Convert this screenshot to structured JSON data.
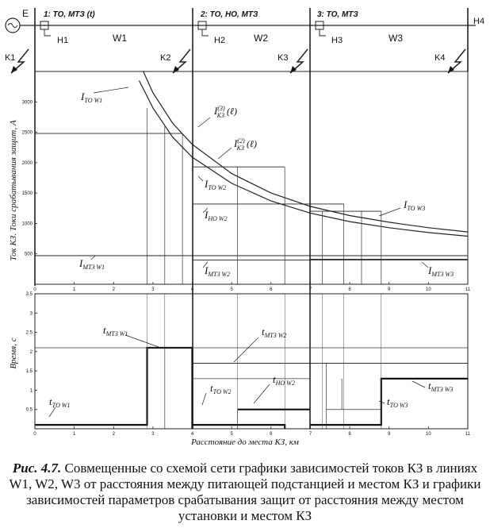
{
  "schema": {
    "source_label": "E",
    "nodes": [
      {
        "id": "H1",
        "label": "H1"
      },
      {
        "id": "H2",
        "label": "H2"
      },
      {
        "id": "H3",
        "label": "H3"
      },
      {
        "id": "H4",
        "label": "H4"
      }
    ],
    "lines": [
      {
        "id": "W1",
        "label": "W1"
      },
      {
        "id": "W2",
        "label": "W2"
      },
      {
        "id": "W3",
        "label": "W3"
      }
    ],
    "protections": [
      {
        "id": "1",
        "label": "1: ТО, МТЗ (t)"
      },
      {
        "id": "2",
        "label": "2: ТО, НО, МТЗ"
      },
      {
        "id": "3",
        "label": "3: ТО, МТЗ"
      }
    ],
    "faults": [
      "K1",
      "K2",
      "K3",
      "K4"
    ]
  },
  "chart_data": [
    {
      "type": "line",
      "title": "",
      "ylabel": "Ток КЗ. Токи срабатывания защит, А",
      "xlabel": "",
      "xlim": [
        0,
        11
      ],
      "ylim": [
        0,
        3500
      ],
      "x_ticks": [
        "0",
        "1",
        "2",
        "3",
        "4",
        "5",
        "6",
        "7",
        "8",
        "9",
        "10",
        "11"
      ],
      "y_ticks": [
        "500",
        "1000",
        "1500",
        "2000",
        "2500",
        "3000"
      ],
      "y_tick_values": [
        500,
        1000,
        1500,
        2000,
        2500,
        3000
      ],
      "series": [
        {
          "name": "I(3)КЗ(ℓ)",
          "x": [
            2.65,
            3.0,
            3.5,
            4.0,
            5.0,
            6.0,
            7.0,
            8.0,
            9.0,
            10.0,
            11.0
          ],
          "y": [
            3650,
            3150,
            2650,
            2300,
            1820,
            1500,
            1280,
            1130,
            1020,
            930,
            860
          ]
        },
        {
          "name": "I(2)КЗ(ℓ)",
          "x": [
            2.65,
            3.0,
            3.5,
            4.0,
            5.0,
            6.0,
            7.0,
            8.0,
            9.0,
            10.0,
            11.0
          ],
          "y": [
            3350,
            2900,
            2420,
            2090,
            1660,
            1370,
            1170,
            1030,
            930,
            850,
            790
          ]
        },
        {
          "name": "IТО W1",
          "x": [
            0,
            3.75
          ],
          "y": [
            2480,
            2480
          ]
        },
        {
          "name": "IТО W2",
          "x": [
            4,
            6.35
          ],
          "y": [
            1930,
            1930
          ]
        },
        {
          "name": "IНО W2",
          "x": [
            4,
            7.85
          ],
          "y": [
            1320,
            1320
          ]
        },
        {
          "name": "IТО W3",
          "x": [
            7,
            8.8
          ],
          "y": [
            1200,
            1200
          ]
        },
        {
          "name": "IМТЗ W1",
          "x": [
            0,
            11
          ],
          "y": [
            470,
            470
          ]
        },
        {
          "name": "IМТЗ W2",
          "x": [
            4,
            11
          ],
          "y": [
            400,
            400
          ]
        },
        {
          "name": "IМТЗ W3",
          "x": [
            7,
            11
          ],
          "y": [
            410,
            410
          ]
        }
      ],
      "annotations": [
        {
          "id": "i_to_w1",
          "main": "I",
          "sub": "ТО W1"
        },
        {
          "id": "i_kz3",
          "main": "I",
          "sup": "(3)",
          "sub": "КЗ",
          "arg": "(ℓ)"
        },
        {
          "id": "i_kz2",
          "main": "I",
          "sup": "(2)",
          "sub": "КЗ",
          "arg": "(ℓ)"
        },
        {
          "id": "i_to_w2",
          "main": "I",
          "sub": "ТО W2"
        },
        {
          "id": "i_no_w2",
          "main": "I",
          "sub": "НО W2"
        },
        {
          "id": "i_to_w3",
          "main": "I",
          "sub": "ТО W3"
        },
        {
          "id": "i_mtz_w1",
          "main": "I",
          "sub": "МТЗ W1"
        },
        {
          "id": "i_mtz_w2",
          "main": "I",
          "sub": "МТЗ W2"
        },
        {
          "id": "i_mtz_w3",
          "main": "I",
          "sub": "МТЗ W3"
        }
      ]
    },
    {
      "type": "line",
      "title": "",
      "ylabel": "Время, с",
      "xlabel": "Расстояние до места КЗ, км",
      "xlim": [
        0,
        11
      ],
      "ylim": [
        0,
        3.5
      ],
      "x_ticks": [
        "0",
        "1",
        "2",
        "3",
        "4",
        "5",
        "6",
        "7",
        "8",
        "9",
        "10",
        "11"
      ],
      "y_ticks": [
        "0.5",
        "1",
        "1.5",
        "2",
        "2.5",
        "3",
        "3.5"
      ],
      "y_tick_values": [
        0.5,
        1,
        1.5,
        2,
        2.5,
        3,
        3.5
      ],
      "series": [
        {
          "name": "tТО W1 / tМТЗ W1",
          "x": [
            0,
            2.85,
            2.85,
            4,
            4
          ],
          "y": [
            0.1,
            0.1,
            2.1,
            2.1,
            0
          ]
        },
        {
          "name": "tТО W2 / tНО W2",
          "x": [
            4,
            5.15,
            5.15,
            6.35,
            6.35
          ],
          "y": [
            0.1,
            0.1,
            0.1,
            0.1,
            0
          ]
        },
        {
          "name": "tНО W2",
          "x": [
            5.15,
            7
          ],
          "y": [
            0.5,
            0.5
          ]
        },
        {
          "name": "tМТЗ W2",
          "x": [
            4,
            11
          ],
          "y": [
            1.7,
            1.7
          ]
        },
        {
          "name": "tТО W3 / tМТЗ W3",
          "x": [
            7,
            8.8,
            8.8,
            11
          ],
          "y": [
            0.1,
            0.1,
            1.3,
            1.3
          ]
        }
      ],
      "annotations": [
        {
          "id": "t_mtz_w1",
          "main": "t",
          "sub": "МТЗ W1"
        },
        {
          "id": "t_to_w1",
          "main": "t",
          "sub": "ТО W1"
        },
        {
          "id": "t_mtz_w2",
          "main": "t",
          "sub": "МТЗ W2"
        },
        {
          "id": "t_to_w2",
          "main": "t",
          "sub": "ТО W2"
        },
        {
          "id": "t_no_w2",
          "main": "t",
          "sub": "НО W2"
        },
        {
          "id": "t_mtz_w3",
          "main": "t",
          "sub": "МТЗ W3"
        },
        {
          "id": "t_to_w3",
          "main": "t",
          "sub": "ТО W3"
        }
      ]
    }
  ],
  "caption": {
    "head": "Рис. 4.7.",
    "text": "Совмещенные со схемой сети графики зависимостей токов КЗ в линиях W1, W2, W3 от расстояния между питающей подстанцией и местом КЗ и графики зависимостей параметров срабатывания защит от расстояния между местом установки и местом КЗ"
  }
}
